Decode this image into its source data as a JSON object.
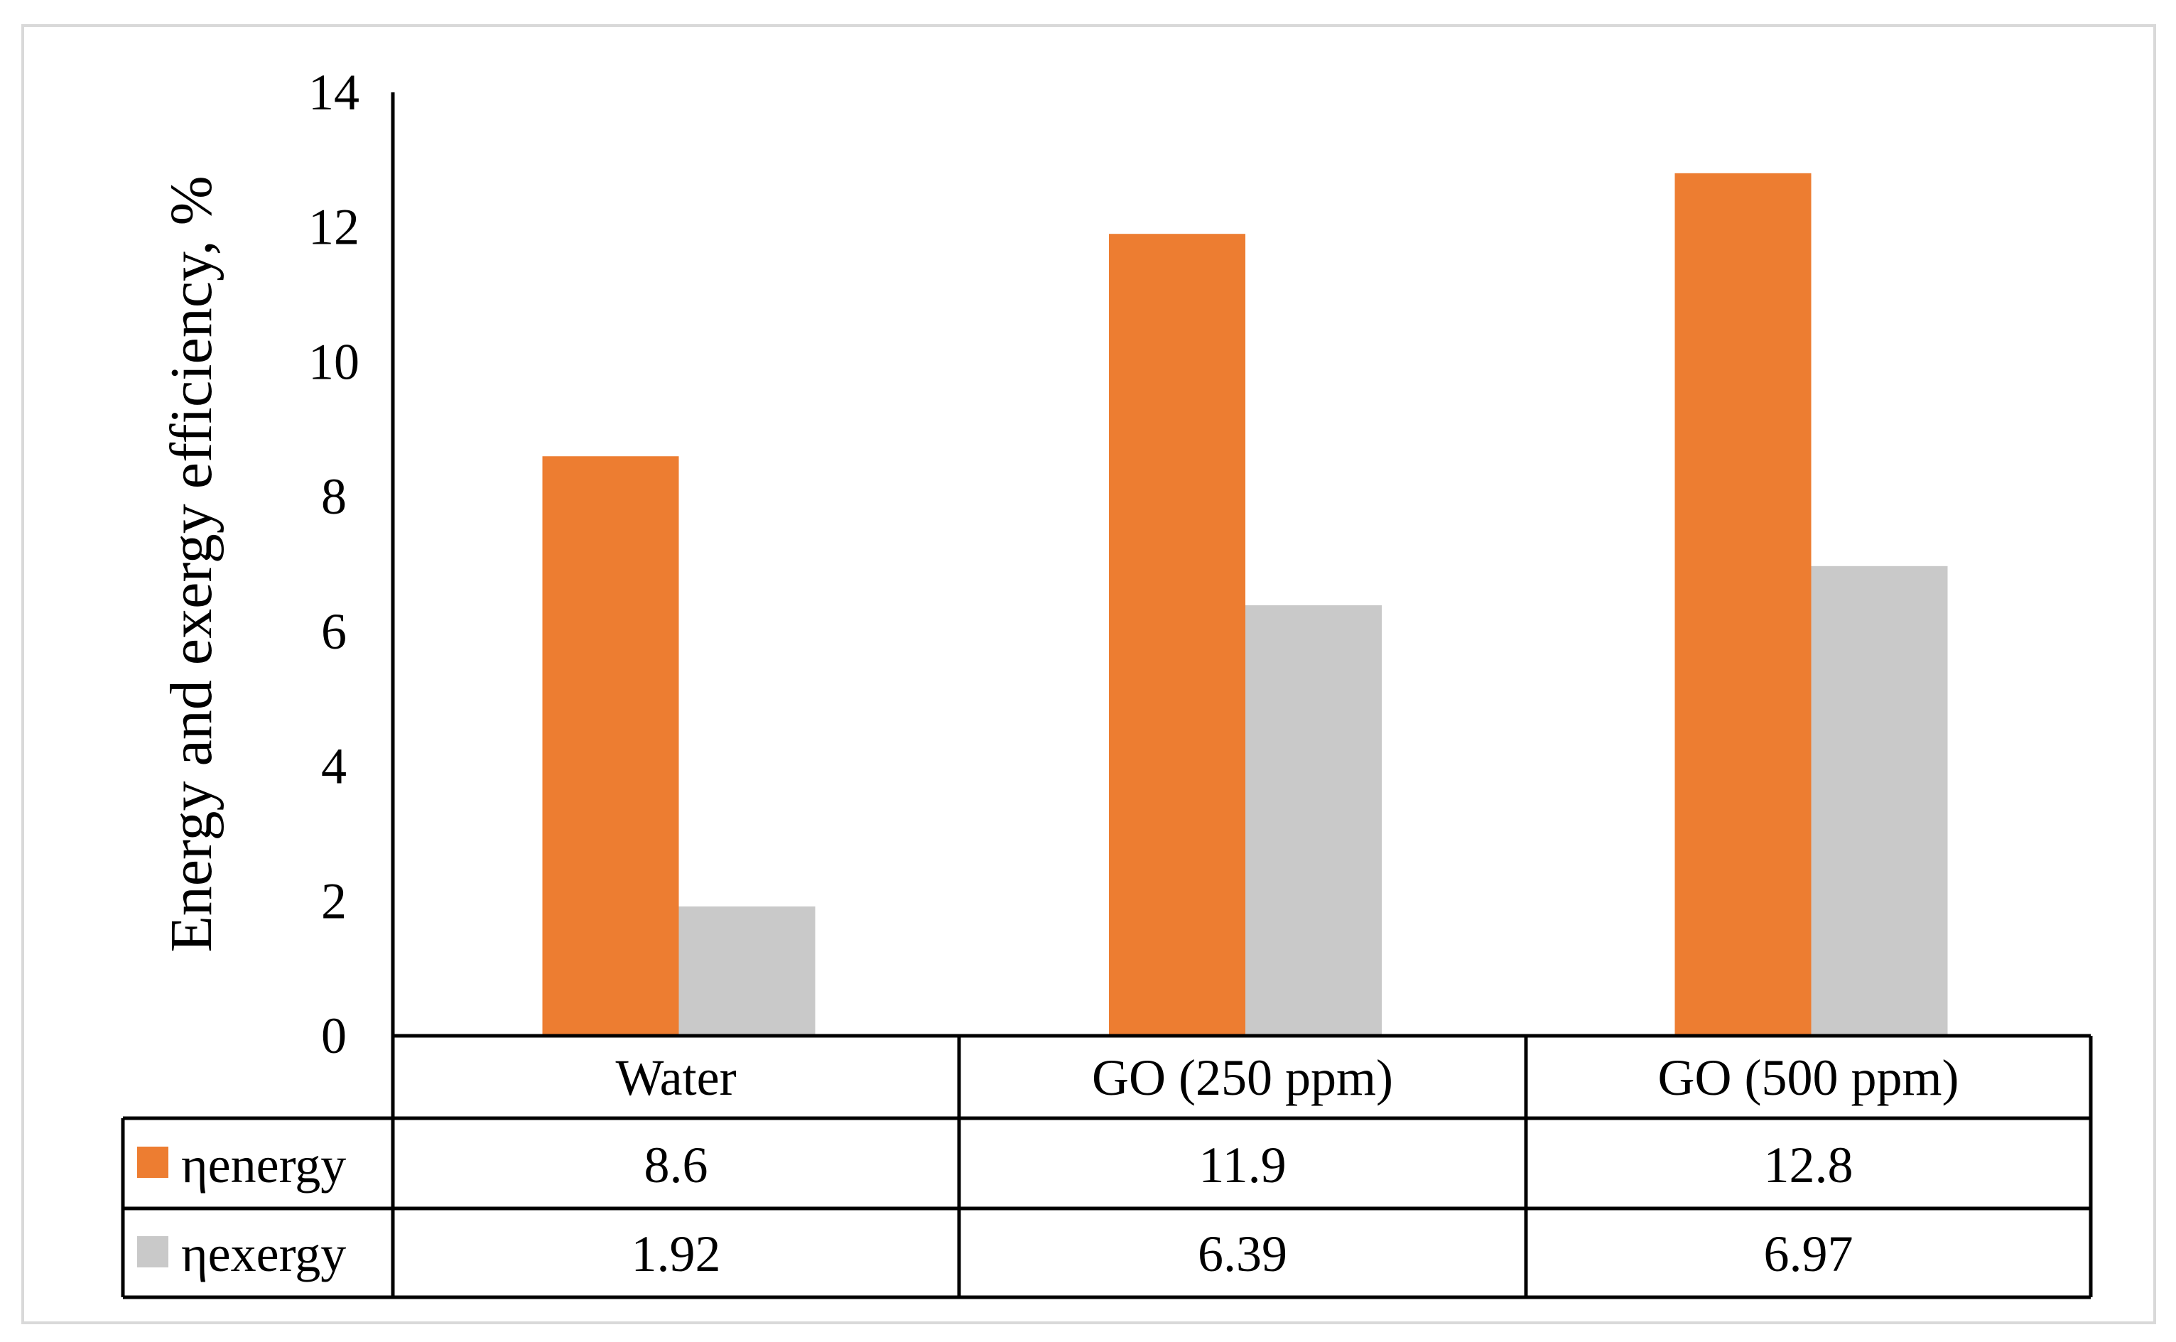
{
  "chart_data": {
    "type": "bar",
    "title": "",
    "xlabel": "",
    "ylabel": "Energy and exergy efficiency, %",
    "ylim": [
      0,
      14
    ],
    "yticks": [
      0,
      2,
      4,
      6,
      8,
      10,
      12,
      14
    ],
    "categories": [
      "Water",
      "GO (250 ppm)",
      "GO (500 ppm)"
    ],
    "series": [
      {
        "name": "ηenergy",
        "color": "#ed7d31",
        "values": [
          8.6,
          11.9,
          12.8
        ],
        "labels": [
          "8.6",
          "11.9",
          "12.8"
        ]
      },
      {
        "name": "ηexergy",
        "color": "#c9c9c9",
        "values": [
          1.92,
          6.39,
          6.97
        ],
        "labels": [
          "1.92",
          "6.39",
          "6.97"
        ]
      }
    ],
    "grid": false,
    "legend": "data-table"
  }
}
